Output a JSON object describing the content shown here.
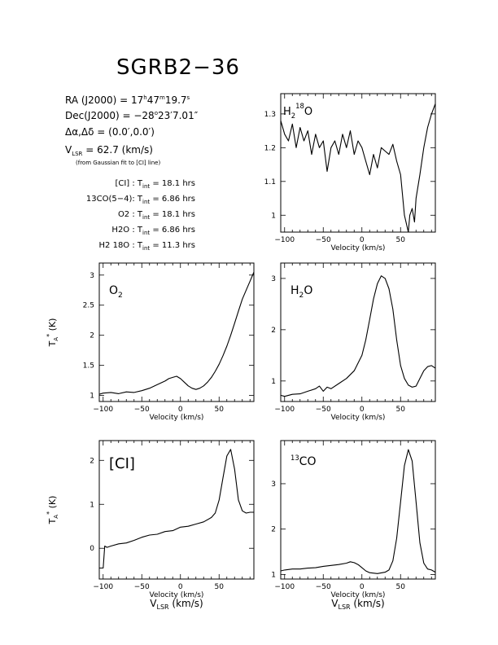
{
  "header": {
    "title": "SGRB2−36",
    "ra": {
      "label": "RA (J2000)  =  ",
      "h": "17",
      "h_unit": "h",
      "m": "47",
      "m_unit": "m",
      "s": "19.7",
      "s_unit": "s"
    },
    "dec": {
      "label": "Dec(J2000)  =  ",
      "deg": "−28",
      "deg_unit": "o",
      "rest": "23′7.01″"
    },
    "offset": {
      "label": "Δα,Δδ  =  (0.0′,0.0′)"
    },
    "vlsr": {
      "label": "V",
      "sub": "LSR",
      "value": "  =  62.7  (km/s)"
    },
    "vlsr_note": "(from Gaussian fit to [CI] line)"
  },
  "integration_times": [
    {
      "line": "[CI] :",
      "tint": "18.1 hrs"
    },
    {
      "line": "13CO(5−4):",
      "tint": "6.86 hrs"
    },
    {
      "line": "O2 :",
      "tint": "18.1 hrs"
    },
    {
      "line": "H2O :",
      "tint": "6.86 hrs"
    },
    {
      "line": "H2 18O :",
      "tint": "11.3 hrs"
    }
  ],
  "tint_label": "T",
  "tint_sub": "int",
  "tint_eq": " = ",
  "axis_text": {
    "velocity": "Velocity  (km/s)",
    "vlsr_main": "V",
    "vlsr_sub": "LSR",
    "vlsr_unit": " (km/s)",
    "ylabel_main": "T",
    "ylabel_sub": "A",
    "ylabel_sup": "*",
    "ylabel_unit": " (K)"
  },
  "chart_data": [
    {
      "type": "line",
      "label_main": "H",
      "label_sub": "2",
      "label_sup": "18",
      "label_tail": "O",
      "xlim": [
        -105,
        95
      ],
      "ylim": [
        0.95,
        1.36
      ],
      "xticks": [
        -100,
        -50,
        0,
        50
      ],
      "yticks": [
        1,
        1.1,
        1.2,
        1.3
      ],
      "x": [
        -105,
        -100,
        -95,
        -90,
        -85,
        -80,
        -75,
        -70,
        -65,
        -60,
        -55,
        -50,
        -45,
        -40,
        -35,
        -30,
        -25,
        -20,
        -15,
        -10,
        -5,
        0,
        5,
        10,
        15,
        20,
        25,
        30,
        35,
        40,
        45,
        50,
        55,
        58,
        60,
        62,
        65,
        68,
        70,
        75,
        80,
        85,
        90,
        95
      ],
      "y": [
        1.28,
        1.24,
        1.22,
        1.27,
        1.2,
        1.26,
        1.22,
        1.25,
        1.18,
        1.24,
        1.2,
        1.22,
        1.13,
        1.2,
        1.22,
        1.18,
        1.24,
        1.2,
        1.25,
        1.18,
        1.22,
        1.2,
        1.16,
        1.12,
        1.18,
        1.14,
        1.2,
        1.19,
        1.18,
        1.21,
        1.16,
        1.12,
        1.0,
        0.97,
        0.95,
        1.0,
        1.02,
        0.98,
        1.05,
        1.12,
        1.2,
        1.26,
        1.3,
        1.33
      ]
    },
    {
      "type": "line",
      "label_main": "O",
      "label_sub": "2",
      "label_sup": "",
      "label_tail": "",
      "xlim": [
        -105,
        95
      ],
      "ylim": [
        0.9,
        3.2
      ],
      "xticks": [
        -100,
        -50,
        0,
        50
      ],
      "yticks": [
        1,
        1.5,
        2,
        2.5,
        3
      ],
      "x": [
        -105,
        -100,
        -90,
        -80,
        -70,
        -60,
        -50,
        -40,
        -30,
        -20,
        -15,
        -10,
        -5,
        0,
        5,
        10,
        15,
        20,
        25,
        30,
        35,
        40,
        45,
        50,
        55,
        60,
        65,
        70,
        75,
        80,
        85,
        90,
        95
      ],
      "y": [
        1.02,
        1.04,
        1.05,
        1.03,
        1.06,
        1.05,
        1.08,
        1.12,
        1.18,
        1.24,
        1.28,
        1.3,
        1.32,
        1.28,
        1.22,
        1.16,
        1.12,
        1.1,
        1.12,
        1.16,
        1.22,
        1.3,
        1.4,
        1.52,
        1.66,
        1.82,
        2.0,
        2.2,
        2.4,
        2.6,
        2.75,
        2.9,
        3.05
      ]
    },
    {
      "type": "line",
      "label_main": "H",
      "label_sub": "2",
      "label_sup": "",
      "label_tail": "O",
      "xlim": [
        -105,
        95
      ],
      "ylim": [
        0.6,
        3.3
      ],
      "xticks": [
        -100,
        -50,
        0,
        50
      ],
      "yticks": [
        1,
        2,
        3
      ],
      "x": [
        -105,
        -100,
        -90,
        -80,
        -70,
        -60,
        -55,
        -50,
        -45,
        -40,
        -30,
        -20,
        -10,
        0,
        5,
        10,
        15,
        20,
        25,
        30,
        35,
        40,
        45,
        50,
        55,
        60,
        65,
        70,
        75,
        80,
        85,
        90,
        95
      ],
      "y": [
        0.72,
        0.7,
        0.74,
        0.75,
        0.8,
        0.85,
        0.9,
        0.8,
        0.88,
        0.85,
        0.95,
        1.05,
        1.2,
        1.5,
        1.8,
        2.2,
        2.6,
        2.9,
        3.05,
        3.0,
        2.8,
        2.4,
        1.8,
        1.3,
        1.05,
        0.92,
        0.88,
        0.9,
        1.05,
        1.2,
        1.28,
        1.3,
        1.25
      ]
    },
    {
      "type": "line",
      "label_main": "[CI]",
      "label_sub": "",
      "label_sup": "",
      "label_tail": "",
      "xlim": [
        -105,
        95
      ],
      "ylim": [
        -0.7,
        2.45
      ],
      "xticks": [
        -100,
        -50,
        0,
        50
      ],
      "yticks": [
        0,
        1,
        2
      ],
      "x": [
        -105,
        -100,
        -98,
        -95,
        -90,
        -80,
        -70,
        -60,
        -50,
        -40,
        -30,
        -20,
        -10,
        0,
        10,
        20,
        30,
        40,
        45,
        50,
        55,
        60,
        65,
        70,
        75,
        80,
        85,
        90,
        95
      ],
      "y": [
        -0.45,
        -0.45,
        0.05,
        0.02,
        0.05,
        0.1,
        0.12,
        0.18,
        0.25,
        0.3,
        0.32,
        0.38,
        0.4,
        0.48,
        0.5,
        0.55,
        0.6,
        0.7,
        0.8,
        1.1,
        1.6,
        2.1,
        2.25,
        1.8,
        1.1,
        0.85,
        0.8,
        0.82,
        0.82
      ]
    },
    {
      "type": "line",
      "label_main": "CO",
      "label_sub": "",
      "label_sup": "13",
      "label_tail": "",
      "xlim": [
        -105,
        95
      ],
      "ylim": [
        0.9,
        3.95
      ],
      "xticks": [
        -100,
        -50,
        0,
        50
      ],
      "yticks": [
        1,
        2,
        3
      ],
      "x": [
        -105,
        -100,
        -90,
        -80,
        -70,
        -60,
        -50,
        -40,
        -30,
        -20,
        -15,
        -10,
        -5,
        0,
        5,
        10,
        20,
        30,
        35,
        40,
        45,
        50,
        55,
        60,
        65,
        70,
        75,
        80,
        85,
        90,
        95
      ],
      "y": [
        1.08,
        1.1,
        1.12,
        1.12,
        1.14,
        1.15,
        1.18,
        1.2,
        1.22,
        1.25,
        1.28,
        1.26,
        1.22,
        1.15,
        1.08,
        1.04,
        1.02,
        1.05,
        1.1,
        1.3,
        1.8,
        2.6,
        3.4,
        3.75,
        3.5,
        2.6,
        1.7,
        1.25,
        1.12,
        1.1,
        1.05
      ]
    }
  ]
}
